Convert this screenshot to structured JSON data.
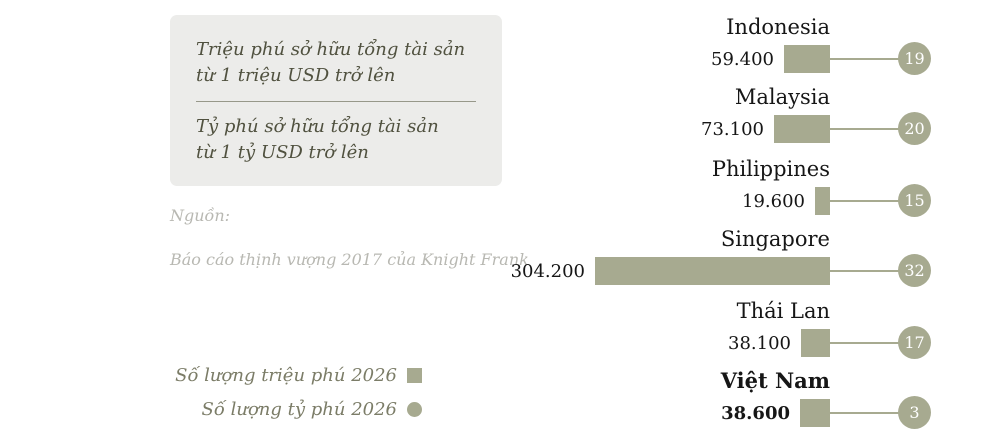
{
  "colors": {
    "accent": "#a7aa90",
    "note_bg": "#ececea",
    "note_text": "#50513f",
    "source_text": "#b8b8b2",
    "legend_text": "#7b7c67",
    "label_text": "#161616"
  },
  "definitions": {
    "millionaire": "Triệu phú sở hữu tổng tài sản\ntừ 1 triệu USD trở lên",
    "billionaire": "Tỷ phú sở hữu tổng tài sản\ntừ 1 tỷ USD trở lên"
  },
  "source": {
    "label": "Nguồn:",
    "text": "Báo cáo thịnh vượng 2017 của Knight Frank"
  },
  "legend": {
    "millionaires": "Số lượng triệu phú 2026",
    "billionaires": "Số lượng tỷ phú 2026"
  },
  "chart_data": {
    "type": "bar",
    "orientation": "horizontal",
    "categories": [
      "Indonesia",
      "Malaysia",
      "Philippines",
      "Singapore",
      "Thái Lan",
      "Việt Nam"
    ],
    "series": [
      {
        "name": "Số lượng triệu phú 2026",
        "marker": "square",
        "values": [
          59400,
          73100,
          19600,
          304200,
          38100,
          38600
        ]
      },
      {
        "name": "Số lượng tỷ phú 2026",
        "marker": "circle",
        "values": [
          19,
          20,
          15,
          32,
          17,
          3
        ]
      }
    ],
    "value_labels": [
      "59.400",
      "73.100",
      "19.600",
      "304.200",
      "38.100",
      "38.600"
    ],
    "highlight_category": "Việt Nam",
    "legend_position": "bottom-left",
    "grid": false
  }
}
